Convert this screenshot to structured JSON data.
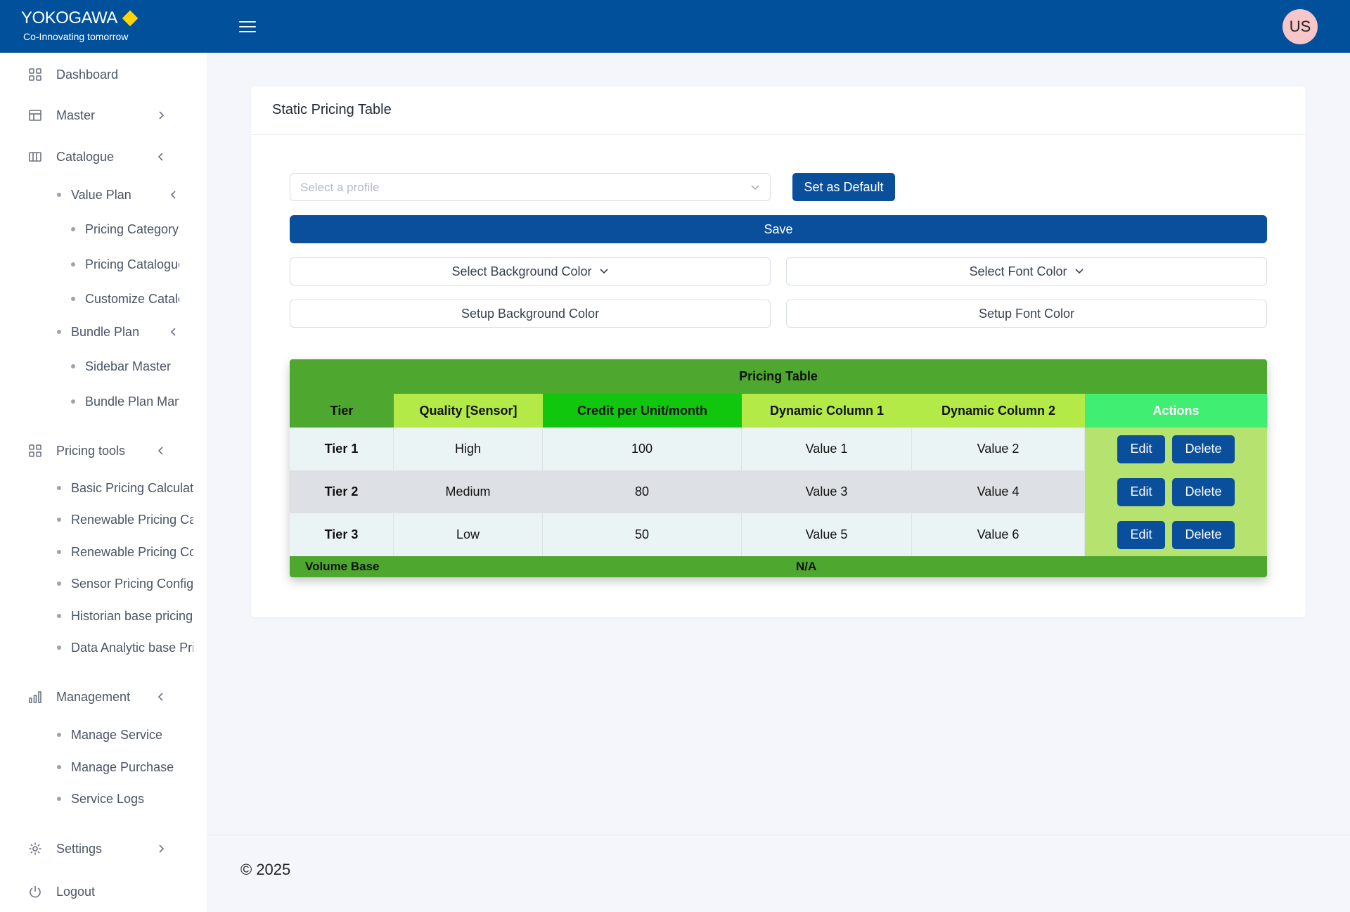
{
  "header": {
    "brand_name": "YOKOGAWA",
    "brand_tagline": "Co-Innovating tomorrow",
    "avatar_initials": "US"
  },
  "sidebar": {
    "dashboard": "Dashboard",
    "master": "Master",
    "catalogue": "Catalogue",
    "value_plan": "Value Plan",
    "pricing_category": "Pricing Category",
    "pricing_catalogue": "Pricing Catalogue",
    "customize_catalogue": "Customize Catalc",
    "bundle_plan": "Bundle Plan",
    "sidebar_master": "Sidebar Master",
    "bundle_plan_man": "Bundle Plan Man",
    "pricing_tools": "Pricing tools",
    "basic_pricing": "Basic Pricing Calculat",
    "renewable_pricing_ca": "Renewable Pricing Ca",
    "renewable_pricing_co": "Renewable Pricing Co",
    "sensor_pricing": "Sensor Pricing Config",
    "historian_pricing": "Historian base pricing",
    "data_analytic": "Data Analytic base Pri",
    "management": "Management",
    "manage_service": "Manage Service",
    "manage_purchase": "Manage Purchase",
    "service_logs": "Service Logs",
    "settings": "Settings",
    "logout": "Logout"
  },
  "card": {
    "title": "Static Pricing Table",
    "profile_placeholder": "Select a profile",
    "set_default": "Set as Default",
    "save": "Save",
    "select_bg_color": "Select Background Color",
    "select_font_color": "Select Font Color",
    "setup_bg_color": "Setup Background Color",
    "setup_font_color": "Setup Font Color"
  },
  "pricing_table": {
    "title": "Pricing Table",
    "headers": [
      "Tier",
      "Quality [Sensor]",
      "Credit per Unit/month",
      "Dynamic Column 1",
      "Dynamic Column 2",
      "Actions"
    ],
    "header_colors": [
      "#4ea72e",
      "#b3ea47",
      "#11c70d",
      "#b3ea47",
      "#b3ea47",
      "#40ee72"
    ],
    "rows": [
      {
        "tier": "Tier 1",
        "quality": "High",
        "credit": "100",
        "dyn1": "Value 1",
        "dyn2": "Value 2"
      },
      {
        "tier": "Tier 2",
        "quality": "Medium",
        "credit": "80",
        "dyn1": "Value 3",
        "dyn2": "Value 4"
      },
      {
        "tier": "Tier 3",
        "quality": "Low",
        "credit": "50",
        "dyn1": "Value 5",
        "dyn2": "Value 6"
      }
    ],
    "edit_label": "Edit",
    "delete_label": "Delete",
    "footer_label": "Volume Base",
    "footer_value": "N/A",
    "title_color": "#4ea72e",
    "actions_cell_color": "#b6e36f"
  },
  "footer": {
    "copyright": "© 2025"
  },
  "colors": {
    "brand_blue": "#00509b",
    "button_blue": "#0a4f9c",
    "brand_diamond": "#ffd400"
  }
}
